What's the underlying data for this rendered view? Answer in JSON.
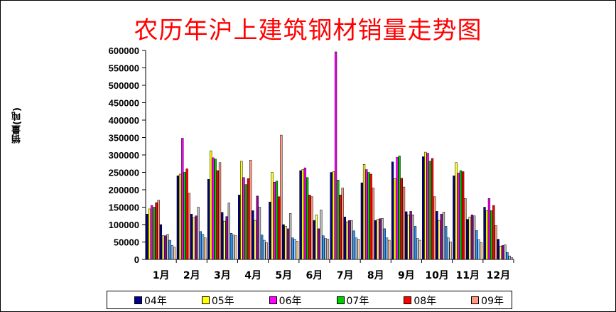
{
  "chart_data": {
    "type": "bar",
    "title": "农历年沪上建筑钢材销量走势图",
    "ylabel": "销量(吨)",
    "xlabel": "",
    "ylim": [
      0,
      600000
    ],
    "yticks": [
      0,
      50000,
      100000,
      150000,
      200000,
      250000,
      300000,
      350000,
      400000,
      450000,
      500000,
      550000,
      600000
    ],
    "ytick_labels": [
      "0",
      "50000",
      "100000",
      "150000",
      "200000",
      "250000",
      "300000",
      "350000",
      "400000",
      "450000",
      "500000",
      "550000",
      "600000"
    ],
    "grid": false,
    "legend_position": "bottom",
    "categories": [
      "1月",
      "2月",
      "3月",
      "4月",
      "5月",
      "6月",
      "7月",
      "8月",
      "9月",
      "10月",
      "11月",
      "12月"
    ],
    "series": [
      {
        "name": "04年",
        "color": "#00008b",
        "values": [
          130000,
          240000,
          230000,
          185000,
          165000,
          255000,
          250000,
          220000,
          280000,
          295000,
          240000,
          150000
        ]
      },
      {
        "name": "05年",
        "color": "#ffff00",
        "values": [
          145000,
          245000,
          312000,
          282000,
          250000,
          258000,
          252000,
          273000,
          232000,
          308000,
          278000,
          140000
        ]
      },
      {
        "name": "06年",
        "color": "#ff00ff",
        "values": [
          155000,
          348000,
          292000,
          235000,
          222000,
          263000,
          596000,
          258000,
          293000,
          305000,
          248000,
          175000
        ]
      },
      {
        "name": "07年",
        "color": "#00cc00",
        "values": [
          150000,
          250000,
          288000,
          215000,
          225000,
          235000,
          228000,
          250000,
          297000,
          282000,
          255000,
          140000
        ]
      },
      {
        "name": "08年",
        "color": "#ff0000",
        "values": [
          163000,
          260000,
          255000,
          232000,
          180000,
          185000,
          185000,
          245000,
          233000,
          290000,
          252000,
          155000
        ]
      },
      {
        "name": "09年",
        "color": "#ff9980",
        "values": [
          170000,
          190000,
          278000,
          285000,
          357000,
          180000,
          205000,
          205000,
          208000,
          180000,
          175000,
          97000
        ]
      },
      {
        "name": "",
        "color": "#000080",
        "values": [
          100000,
          130000,
          135000,
          140000,
          100000,
          112000,
          122000,
          112000,
          137000,
          138000,
          115000,
          58000
        ]
      },
      {
        "name": "",
        "color": "#ffff66",
        "values": [
          68000,
          120000,
          110000,
          112000,
          95000,
          128000,
          108000,
          115000,
          128000,
          112000,
          122000,
          38000
        ]
      },
      {
        "name": "",
        "color": "#990099",
        "values": [
          68000,
          125000,
          123000,
          182000,
          88000,
          88000,
          112000,
          117000,
          138000,
          130000,
          128000,
          40000
        ]
      },
      {
        "name": "",
        "color": "#c0c0c0",
        "values": [
          72000,
          150000,
          162000,
          150000,
          132000,
          142000,
          112000,
          118000,
          128000,
          136000,
          125000,
          42000
        ]
      },
      {
        "name": "",
        "color": "#3399ff",
        "values": [
          55000,
          80000,
          75000,
          70000,
          62000,
          68000,
          82000,
          88000,
          95000,
          95000,
          83000,
          20000
        ]
      },
      {
        "name": "",
        "color": "#99ccff",
        "values": [
          40000,
          72000,
          70000,
          55000,
          58000,
          60000,
          62000,
          62000,
          60000,
          62000,
          57000,
          10000
        ]
      },
      {
        "name": "",
        "color": "#ffcc99",
        "values": [
          35000,
          62000,
          68000,
          48000,
          52000,
          58000,
          58000,
          55000,
          55000,
          50000,
          48000,
          5000
        ]
      }
    ]
  }
}
